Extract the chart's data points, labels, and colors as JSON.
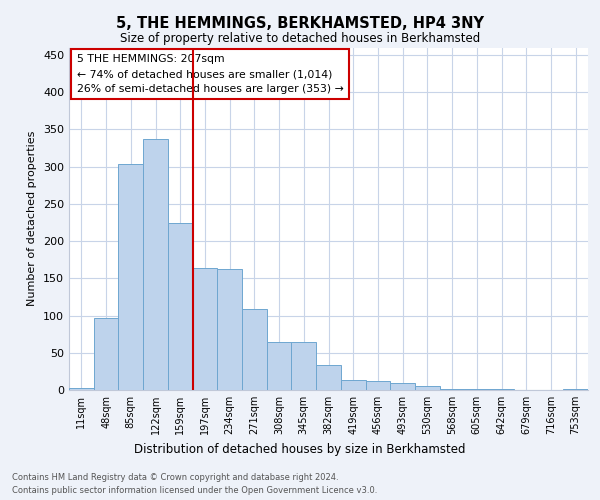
{
  "title": "5, THE HEMMINGS, BERKHAMSTED, HP4 3NY",
  "subtitle": "Size of property relative to detached houses in Berkhamsted",
  "xlabel": "Distribution of detached houses by size in Berkhamsted",
  "ylabel": "Number of detached properties",
  "bar_values": [
    3,
    97,
    303,
    337,
    224,
    164,
    163,
    109,
    65,
    65,
    33,
    13,
    12,
    9,
    5,
    2,
    1,
    1,
    0,
    0,
    2
  ],
  "bar_labels": [
    "11sqm",
    "48sqm",
    "85sqm",
    "122sqm",
    "159sqm",
    "197sqm",
    "234sqm",
    "271sqm",
    "308sqm",
    "345sqm",
    "382sqm",
    "419sqm",
    "456sqm",
    "493sqm",
    "530sqm",
    "568sqm",
    "605sqm",
    "642sqm",
    "679sqm",
    "716sqm",
    "753sqm"
  ],
  "bar_color": "#bed3ec",
  "bar_edge_color": "#6ea6d0",
  "vline_color": "#cc0000",
  "vline_pos": 4.5,
  "annotation_text": "5 THE HEMMINGS: 207sqm\n← 74% of detached houses are smaller (1,014)\n26% of semi-detached houses are larger (353) →",
  "annotation_box_color": "#cc0000",
  "ylim": [
    0,
    460
  ],
  "yticks": [
    0,
    50,
    100,
    150,
    200,
    250,
    300,
    350,
    400,
    450
  ],
  "footer_line1": "Contains HM Land Registry data © Crown copyright and database right 2024.",
  "footer_line2": "Contains public sector information licensed under the Open Government Licence v3.0.",
  "bg_color": "#eef2f9",
  "plot_bg_color": "#ffffff",
  "grid_color": "#c8d4e8"
}
